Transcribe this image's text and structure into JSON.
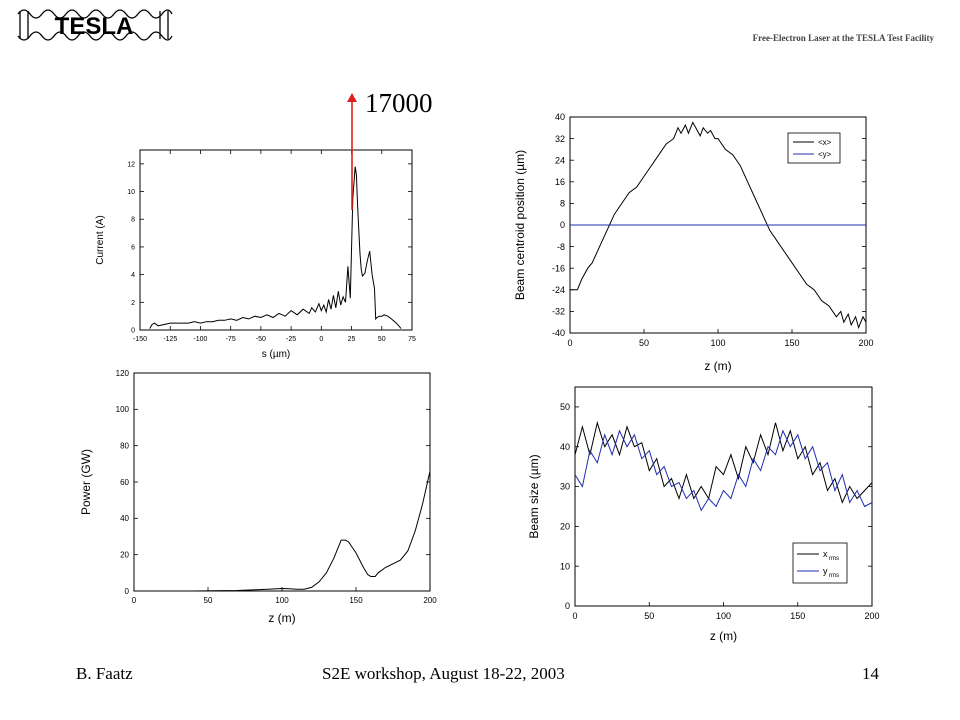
{
  "header": {
    "logo_text": "TESLA",
    "subtitle": "Free-Electron Laser at the TESLA Test Facility"
  },
  "footer": {
    "author": "B. Faatz",
    "event": "S2E workshop, August 18-22, 2003",
    "page": "14"
  },
  "annotation": {
    "label": "17000",
    "color": "#e02020"
  },
  "chart_data": [
    {
      "id": "current",
      "type": "line",
      "title": "",
      "xlabel": "s (µm)",
      "ylabel": "Current (A)",
      "xlim": [
        -150,
        75
      ],
      "ylim": [
        0,
        13
      ],
      "xticks": [
        -150,
        -125,
        -100,
        -75,
        -50,
        -25,
        0,
        25,
        50,
        75
      ],
      "yticks": [
        0,
        2,
        4,
        6,
        8,
        10,
        12
      ],
      "series": [
        {
          "color": "#000000",
          "x": [
            -142,
            -140,
            -138,
            -135,
            -130,
            -125,
            -120,
            -115,
            -110,
            -105,
            -100,
            -95,
            -90,
            -85,
            -80,
            -75,
            -70,
            -65,
            -60,
            -55,
            -50,
            -45,
            -40,
            -35,
            -30,
            -25,
            -20,
            -15,
            -10,
            -8,
            -5,
            -2,
            0,
            2,
            4,
            6,
            8,
            10,
            12,
            14,
            16,
            18,
            20,
            22,
            24,
            26,
            28,
            29,
            30,
            31,
            32,
            33,
            34,
            36,
            38,
            40,
            42,
            44,
            45,
            46,
            48,
            50,
            52,
            55,
            58,
            62,
            66
          ],
          "y": [
            0.1,
            0.4,
            0.5,
            0.3,
            0.4,
            0.5,
            0.5,
            0.5,
            0.5,
            0.6,
            0.5,
            0.6,
            0.6,
            0.7,
            0.7,
            0.8,
            0.7,
            0.9,
            0.8,
            1.0,
            0.9,
            1.1,
            0.9,
            1.2,
            1.0,
            1.4,
            1.1,
            1.5,
            1.2,
            1.6,
            1.3,
            1.9,
            1.4,
            1.8,
            1.3,
            2.2,
            1.5,
            2.5,
            1.6,
            2.8,
            1.8,
            2.4,
            2.0,
            4.6,
            2.3,
            9.5,
            11.8,
            11.2,
            9.0,
            7.2,
            5.5,
            4.4,
            3.9,
            4.1,
            5.0,
            5.7,
            4.0,
            3.0,
            0.8,
            0.9,
            1.0,
            1.0,
            1.1,
            1.0,
            0.8,
            0.5,
            0.1
          ]
        }
      ]
    },
    {
      "id": "centroid",
      "type": "line",
      "title": "",
      "xlabel": "z (m)",
      "ylabel": "Beam centroid position (µm)",
      "xlim": [
        0,
        200
      ],
      "ylim": [
        -40,
        40
      ],
      "xticks": [
        0,
        50,
        100,
        150,
        200
      ],
      "yticks": [
        -40,
        -32,
        -24,
        -16,
        -8,
        0,
        8,
        16,
        24,
        32,
        40
      ],
      "legend_position": "top-right",
      "series": [
        {
          "name": "<x>",
          "color": "#000000",
          "x": [
            0,
            5,
            8,
            12,
            15,
            20,
            25,
            30,
            35,
            40,
            45,
            50,
            55,
            60,
            65,
            70,
            73,
            75,
            78,
            80,
            83,
            85,
            88,
            90,
            93,
            95,
            98,
            100,
            105,
            110,
            115,
            120,
            125,
            130,
            135,
            140,
            145,
            150,
            155,
            160,
            165,
            170,
            175,
            180,
            183,
            185,
            188,
            190,
            193,
            195,
            198,
            200
          ],
          "y": [
            -24,
            -24,
            -20,
            -16,
            -14,
            -8,
            -2,
            4,
            8,
            12,
            14,
            18,
            22,
            26,
            30,
            32,
            36,
            34,
            37,
            34,
            38,
            36,
            33,
            36,
            34,
            35,
            32,
            32,
            28,
            26,
            22,
            16,
            10,
            4,
            -2,
            -6,
            -10,
            -14,
            -18,
            -22,
            -24,
            -28,
            -30,
            -34,
            -32,
            -36,
            -33,
            -37,
            -34,
            -38,
            -34,
            -36
          ]
        },
        {
          "name": "<y>",
          "color": "#1f2fb0",
          "x": [
            0,
            200
          ],
          "y": [
            0,
            0
          ]
        }
      ]
    },
    {
      "id": "power",
      "type": "line",
      "title": "",
      "xlabel": "z (m)",
      "ylabel": "Power (GW)",
      "xlim": [
        0,
        200
      ],
      "ylim": [
        0,
        120
      ],
      "xticks": [
        0,
        50,
        100,
        150,
        200
      ],
      "yticks": [
        0,
        20,
        40,
        60,
        80,
        100,
        120
      ],
      "series": [
        {
          "color": "#000000",
          "x": [
            0,
            20,
            40,
            60,
            70,
            80,
            90,
            100,
            105,
            110,
            115,
            120,
            125,
            130,
            135,
            138,
            140,
            143,
            145,
            150,
            155,
            158,
            160,
            163,
            165,
            170,
            175,
            180,
            185,
            190,
            195,
            200
          ],
          "y": [
            0,
            0,
            0,
            0.2,
            0.3,
            0.6,
            1.0,
            1.4,
            1.2,
            1.0,
            1.0,
            2,
            5,
            10,
            18,
            24,
            28,
            28,
            27,
            21,
            13,
            9,
            8,
            8,
            10,
            13,
            15,
            17,
            22,
            33,
            48,
            66
          ]
        }
      ]
    },
    {
      "id": "beamsize",
      "type": "line",
      "title": "",
      "xlabel": "z (m)",
      "ylabel": "Beam size (µm)",
      "xlim": [
        0,
        200
      ],
      "ylim": [
        0,
        55
      ],
      "xticks": [
        0,
        50,
        100,
        150,
        200
      ],
      "yticks": [
        0,
        10,
        20,
        30,
        40,
        50
      ],
      "legend_position": "bottom-right",
      "series": [
        {
          "name": "x",
          "subscript": "rms",
          "color": "#000000",
          "x": [
            0,
            5,
            10,
            15,
            20,
            25,
            30,
            35,
            40,
            45,
            50,
            55,
            60,
            65,
            70,
            75,
            80,
            85,
            90,
            95,
            100,
            105,
            110,
            115,
            120,
            125,
            130,
            135,
            140,
            145,
            150,
            155,
            160,
            165,
            170,
            175,
            180,
            185,
            190,
            195,
            200
          ],
          "y": [
            38,
            45,
            38,
            46,
            40,
            43,
            38,
            45,
            40,
            41,
            34,
            37,
            30,
            32,
            27,
            33,
            27,
            30,
            27,
            35,
            33,
            38,
            32,
            40,
            36,
            43,
            38,
            46,
            39,
            44,
            37,
            40,
            33,
            36,
            29,
            32,
            26,
            30,
            27,
            29,
            31
          ]
        },
        {
          "name": "y",
          "subscript": "rms",
          "color": "#1f2fb0",
          "x": [
            0,
            5,
            10,
            15,
            20,
            25,
            30,
            35,
            40,
            45,
            50,
            55,
            60,
            65,
            70,
            75,
            80,
            85,
            90,
            95,
            100,
            105,
            110,
            115,
            120,
            125,
            130,
            135,
            140,
            145,
            150,
            155,
            160,
            165,
            170,
            175,
            180,
            185,
            190,
            195,
            200
          ],
          "y": [
            33,
            30,
            39,
            36,
            43,
            38,
            44,
            40,
            43,
            37,
            39,
            33,
            35,
            30,
            31,
            27,
            29,
            24,
            27,
            25,
            29,
            27,
            33,
            30,
            37,
            34,
            40,
            38,
            44,
            40,
            43,
            37,
            40,
            34,
            36,
            29,
            33,
            26,
            29,
            25,
            26
          ]
        }
      ]
    }
  ]
}
